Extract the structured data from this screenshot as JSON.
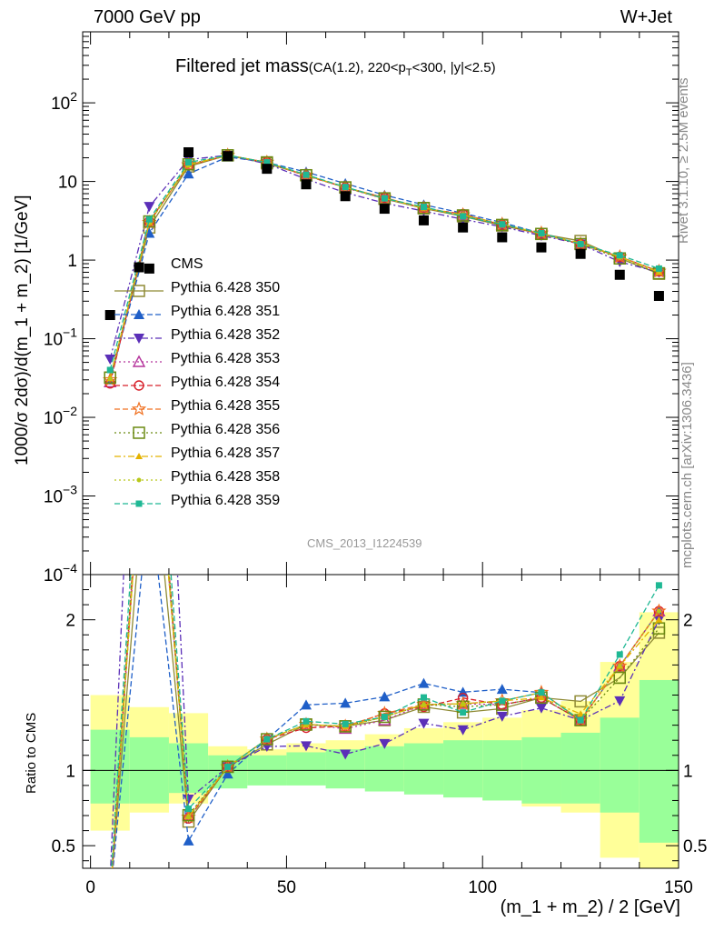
{
  "header": {
    "left": "7000 GeV pp",
    "right": "W+Jet"
  },
  "side_labels": {
    "rivet": "Rivet 3.1.10, ≥ 2.5M events",
    "mcplots": "mcplots.cern.ch [arXiv:1306.3436]"
  },
  "analysis_id": "CMS_2013_I1224539",
  "chart_data": {
    "type": "scatter",
    "title": "Filtered jet mass",
    "subtitle_parts": {
      "pre": "(CA(1.2), 220<p",
      "sub": "T",
      "post": "<300, |y|<2.5)"
    },
    "xlabel": "(m_1 + m_2) / 2 [GeV]",
    "ylabel": "1000/σ 2dσ)/d(m_1 + m_2) [1/GeV]",
    "ratio_ylabel": "Ratio to CMS",
    "xlim": [
      -2,
      150
    ],
    "ylim": [
      0.0001,
      800
    ],
    "yscale": "log",
    "ratio_ylim": [
      0.35,
      2.3
    ],
    "x_ticks": [
      0,
      50,
      100,
      150
    ],
    "y_tick_labels": [
      "10^-4",
      "10^-3",
      "10^-2",
      "10^-1",
      "1",
      "10",
      "10^2"
    ],
    "ratio_ticks": [
      0.5,
      1,
      2
    ],
    "x": [
      5,
      15,
      25,
      35,
      45,
      55,
      65,
      75,
      85,
      95,
      105,
      115,
      125,
      135,
      145
    ],
    "data": {
      "name": "CMS",
      "values": [
        0.2,
        0.78,
        23.5,
        21.0,
        14.5,
        9.2,
        6.5,
        4.5,
        3.2,
        2.6,
        1.95,
        1.45,
        1.2,
        0.65,
        0.35
      ]
    },
    "ratio_bands": {
      "edges": [
        0,
        10,
        20,
        30,
        40,
        50,
        60,
        70,
        80,
        90,
        100,
        110,
        120,
        130,
        140,
        150
      ],
      "stat_low": [
        0.78,
        0.78,
        0.85,
        0.88,
        0.9,
        0.9,
        0.88,
        0.86,
        0.84,
        0.82,
        0.8,
        0.78,
        0.78,
        0.72,
        0.52
      ],
      "stat_high": [
        1.27,
        1.22,
        1.18,
        1.1,
        1.1,
        1.12,
        1.14,
        1.16,
        1.18,
        1.2,
        1.2,
        1.22,
        1.25,
        1.35,
        1.6
      ],
      "total_low": [
        0.6,
        0.72,
        0.78,
        0.92,
        0.93,
        0.93,
        0.92,
        0.9,
        0.87,
        0.84,
        0.8,
        0.76,
        0.72,
        0.42,
        0.3
      ],
      "total_high": [
        1.5,
        1.42,
        1.38,
        1.16,
        1.14,
        1.18,
        1.2,
        1.24,
        1.28,
        1.32,
        1.35,
        1.4,
        1.46,
        1.72,
        2.05
      ]
    },
    "series": [
      {
        "name": "Pythia 6.428 350",
        "color": "#8f8a35",
        "marker": "square-open",
        "dash": "solid",
        "values": [
          0.032,
          2.6,
          15.5,
          21.5,
          17.0,
          12.0,
          8.4,
          6.0,
          4.55,
          3.6,
          2.75,
          2.15,
          1.75,
          1.05,
          0.67
        ]
      },
      {
        "name": "Pythia 6.428 351",
        "color": "#1f5fc8",
        "marker": "triangle-up",
        "dash": "6,3",
        "values": [
          0.03,
          2.2,
          12.5,
          20.5,
          17.5,
          13.2,
          9.4,
          6.7,
          5.05,
          3.95,
          3.0,
          2.2,
          1.6,
          1.1,
          0.72
        ]
      },
      {
        "name": "Pythia 6.428 352",
        "color": "#5b2fb8",
        "marker": "triangle-down",
        "dash": "7,3,2,3",
        "values": [
          0.055,
          4.8,
          19.0,
          21.5,
          16.8,
          10.7,
          7.2,
          5.3,
          4.2,
          3.3,
          2.65,
          2.05,
          1.6,
          0.95,
          0.7
        ]
      },
      {
        "name": "Pythia 6.428 353",
        "color": "#b5349c",
        "marker": "triangle-open",
        "dash": "2,3",
        "values": [
          0.028,
          3.0,
          16.5,
          21.5,
          17.5,
          12.0,
          8.3,
          6.0,
          4.6,
          3.75,
          2.8,
          2.15,
          1.6,
          1.1,
          0.72
        ]
      },
      {
        "name": "Pythia 6.428 354",
        "color": "#d8202a",
        "marker": "circle-open",
        "dash": "6,3",
        "values": [
          0.027,
          3.1,
          16.0,
          21.5,
          17.5,
          11.8,
          8.4,
          6.2,
          4.55,
          3.85,
          2.8,
          2.15,
          1.6,
          1.1,
          0.72
        ]
      },
      {
        "name": "Pythia 6.428 355",
        "color": "#f07020",
        "marker": "star-open",
        "dash": "6,3",
        "values": [
          0.03,
          3.0,
          16.2,
          21.5,
          17.5,
          12.0,
          8.4,
          6.2,
          4.6,
          3.75,
          2.85,
          2.2,
          1.6,
          1.1,
          0.72
        ]
      },
      {
        "name": "Pythia 6.428 356",
        "color": "#6b8a12",
        "marker": "square-open",
        "dash": "2,3",
        "values": [
          0.032,
          3.1,
          16.5,
          21.5,
          17.5,
          12.0,
          8.4,
          6.1,
          4.6,
          3.7,
          2.8,
          2.15,
          1.6,
          1.05,
          0.68
        ]
      },
      {
        "name": "Pythia 6.428 357",
        "color": "#e4b200",
        "marker": "tri-small",
        "dash": "7,3,2,3",
        "values": [
          0.031,
          3.0,
          16.3,
          21.5,
          17.5,
          12.0,
          8.4,
          6.1,
          4.6,
          3.75,
          2.85,
          2.15,
          1.65,
          1.1,
          0.7
        ]
      },
      {
        "name": "Pythia 6.428 358",
        "color": "#b8c81a",
        "marker": "dot",
        "dash": "2,3",
        "values": [
          0.031,
          3.0,
          16.2,
          21.5,
          17.5,
          12.0,
          8.4,
          6.1,
          4.6,
          3.75,
          2.85,
          2.2,
          1.6,
          1.1,
          0.72
        ]
      },
      {
        "name": "Pythia 6.428 359",
        "color": "#1fb894",
        "marker": "square-small",
        "dash": "6,3",
        "values": [
          0.04,
          3.3,
          17.5,
          21.5,
          17.5,
          12.2,
          8.5,
          6.1,
          4.75,
          3.6,
          2.85,
          2.2,
          1.6,
          1.15,
          0.78
        ]
      }
    ],
    "legend_placement": "left-center"
  }
}
